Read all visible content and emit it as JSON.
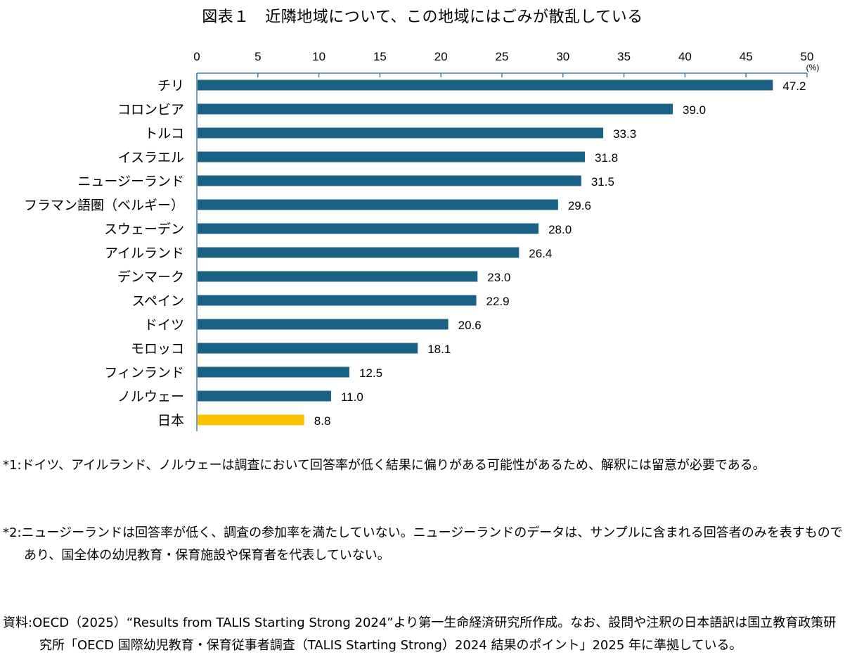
{
  "title": "図表１　近隣地域について、この地域にはごみが散乱している",
  "chart_data": {
    "type": "bar",
    "orientation": "horizontal",
    "title": "図表１　近隣地域について、この地域にはごみが散乱している",
    "xlabel": "",
    "ylabel": "",
    "unit_label": "(%)",
    "xlim": [
      0,
      50
    ],
    "xticks": [
      0,
      5,
      10,
      15,
      20,
      25,
      30,
      35,
      40,
      45,
      50
    ],
    "axis_position": "top",
    "grid": false,
    "legend": "none",
    "categories": [
      "チリ",
      "コロンビア",
      "トルコ",
      "イスラエル",
      "ニュージーランド",
      "フラマン語圏（ベルギー）",
      "スウェーデン",
      "アイルランド",
      "デンマーク",
      "スペイン",
      "ドイツ",
      "モロッコ",
      "フィンランド",
      "ノルウェー",
      "日本"
    ],
    "values": [
      47.2,
      39.0,
      33.3,
      31.8,
      31.5,
      29.6,
      28.0,
      26.4,
      23.0,
      22.9,
      20.6,
      18.1,
      12.5,
      11.0,
      8.8
    ],
    "value_labels": [
      "47.2",
      "39.0",
      "33.3",
      "31.8",
      "31.5",
      "29.6",
      "28.0",
      "26.4",
      "23.0",
      "22.9",
      "20.6",
      "18.1",
      "12.5",
      "11.0",
      "8.8"
    ],
    "highlight_category": "日本",
    "colors": {
      "bar": "#1a6185",
      "highlight": "#ffc000",
      "axis": "#3d7fa6"
    }
  },
  "notes": [
    {
      "label": "*1:",
      "text": "ドイツ、アイルランド、ノルウェーは調査において回答率が低く結果に偏りがある可能性があるため、解釈には留意が必要である。"
    },
    {
      "label": "*2:",
      "text": "ニュージーランドは回答率が低く、調査の参加率を満たしていない。ニュージーランドのデータは、サンプルに含まれる回答者のみを表すものであり、国全体の幼児教育・保育施設や保育者を代表していない。"
    }
  ],
  "source": {
    "label": "資料:",
    "text": "OECD（2025）“Results from TALIS Starting Strong 2024”より第一生命経済研究所作成。なお、設問や注釈の日本語訳は国立教育政策研究所「OECD 国際幼児教育・保育従事者調査（TALIS Starting Strong）2024 結果のポイント」2025 年に準拠している。"
  }
}
